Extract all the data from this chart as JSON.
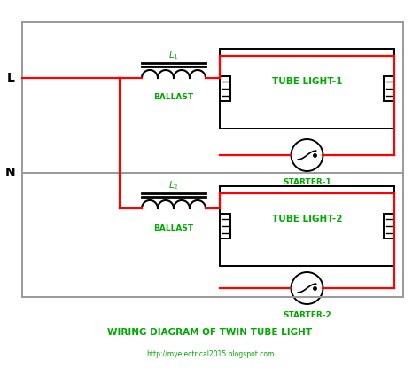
{
  "title": "WIRING DIAGRAM OF TWIN TUBE LIGHT",
  "subtitle": "http://myelectrical2015.blogspot.com",
  "title_color": "#00AA00",
  "subtitle_color": "#00AA00",
  "red": "#FF0000",
  "black": "#000000",
  "gray": "#999999",
  "green": "#00AA00",
  "bg": "#FFFFFF",
  "figsize": [
    4.74,
    4.41
  ],
  "dpi": 100,
  "L_label": "L",
  "N_label": "N",
  "ballast1_label": "BALLAST",
  "ballast2_label": "BALLAST",
  "L1_label": "L",
  "L2_label": "L",
  "tube1_label": "TUBE LIGHT-1",
  "tube2_label": "TUBE LIGHT-2",
  "starter1_label": "STARTER-1",
  "starter2_label": "STARTER-2"
}
